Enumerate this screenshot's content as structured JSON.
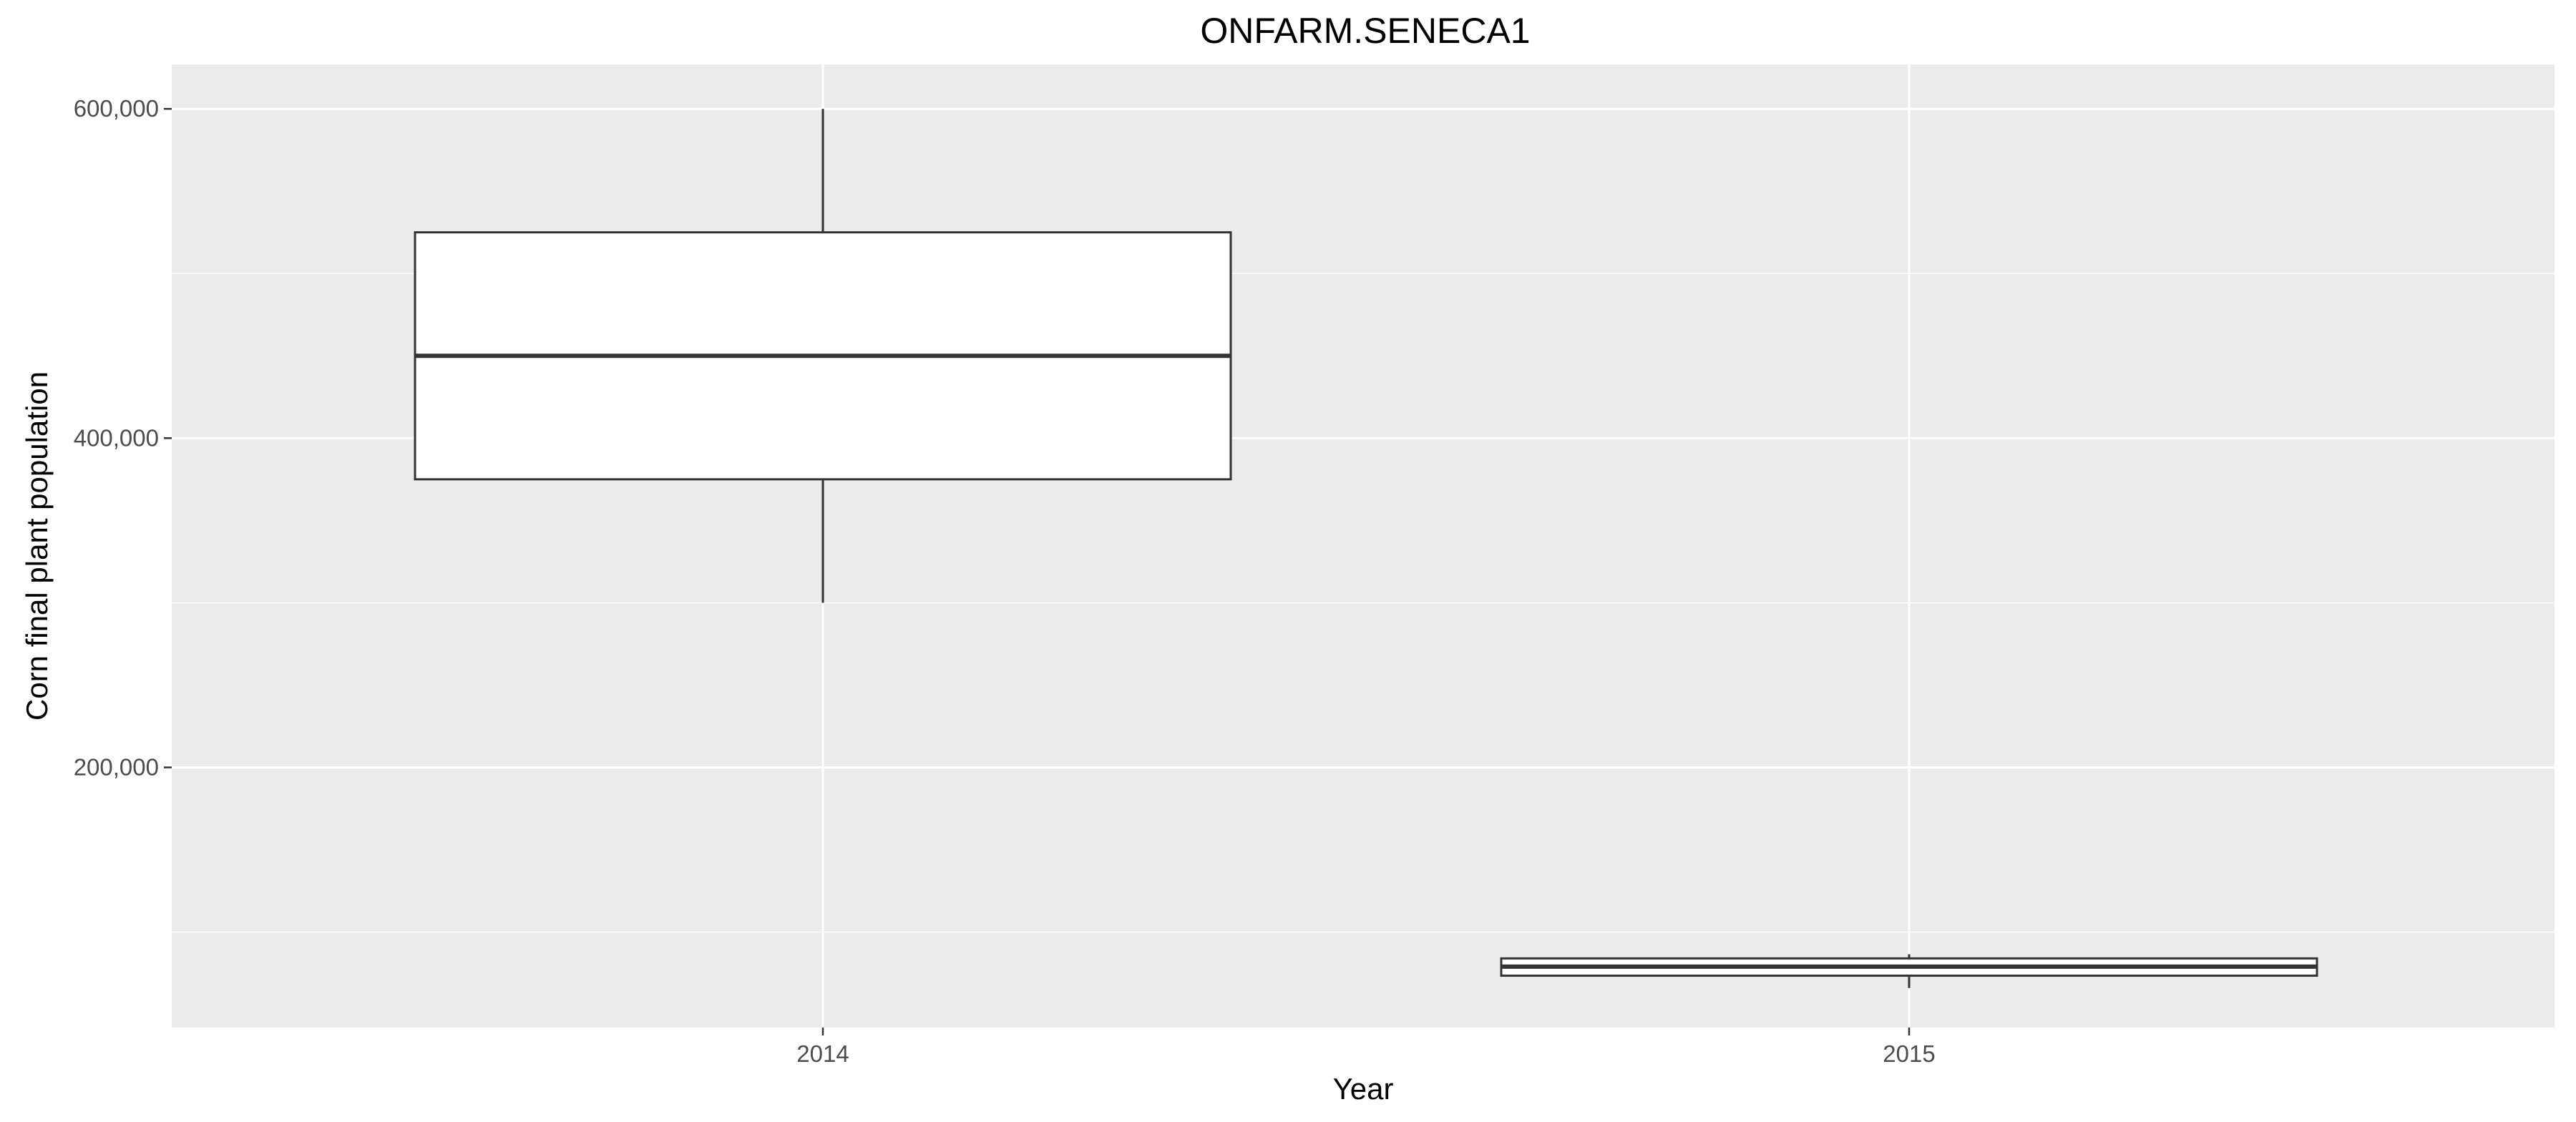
{
  "chart_data": {
    "type": "boxplot",
    "title": "ONFARM.SENECA1",
    "xlabel": "Year",
    "ylabel": "Corn final plant population",
    "categories": [
      "2014",
      "2015"
    ],
    "boxes": [
      {
        "category": "2014",
        "min": 300000,
        "q1": 375000,
        "median": 450000,
        "q3": 525000,
        "max": 600000
      },
      {
        "category": "2015",
        "min": 66000,
        "q1": 73500,
        "median": 79000,
        "q3": 84000,
        "max": 86500
      }
    ],
    "ylim": [
      42000,
      627000
    ],
    "yticks_major": [
      200000,
      400000,
      600000
    ],
    "ytick_labels": [
      "200,000",
      "400,000",
      "600,000"
    ],
    "yticks_minor": [
      100000,
      300000,
      500000
    ],
    "grid": true,
    "colors": {
      "panel": "#ebebeb",
      "grid": "#ffffff",
      "box_fill": "#ffffff",
      "box_stroke": "#333333",
      "tick_text": "#4d4d4d"
    }
  }
}
